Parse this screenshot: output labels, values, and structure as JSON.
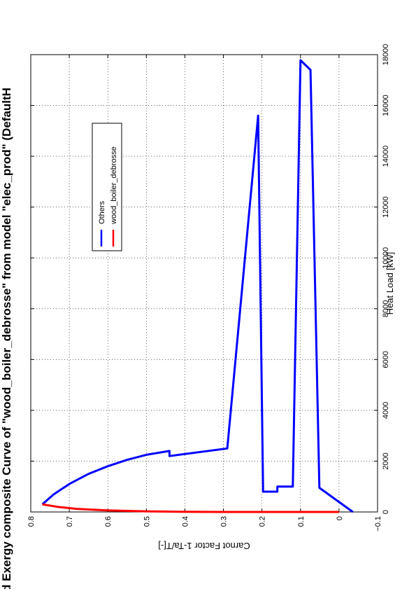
{
  "chart_data": {
    "type": "line",
    "title": "d Exergy composite Curve of \"wood_boiler_debrosse\" from model \"elec_prod\" (DefaultH",
    "xlabel": "Heat Load [kW]",
    "ylabel": "Carnot Factor 1-Ta/T[-]",
    "xlim": [
      0,
      18000
    ],
    "ylim": [
      -0.1,
      0.8
    ],
    "x_ticks": [
      0,
      2000,
      4000,
      6000,
      8000,
      10000,
      12000,
      14000,
      16000,
      18000
    ],
    "y_ticks": [
      -0.1,
      0,
      0.1,
      0.2,
      0.3,
      0.4,
      0.5,
      0.6,
      0.7,
      0.8
    ],
    "x_tick_labels": [
      "0",
      "2000",
      "4000",
      "6000",
      "8000",
      "10000",
      "12000",
      "14000",
      "16000",
      "18000"
    ],
    "y_tick_labels": [
      "−0.1",
      "0",
      "0.1",
      "0.2",
      "0.3",
      "0.4",
      "0.5",
      "0.6",
      "0.7",
      "0.8"
    ],
    "grid": true,
    "legend_position": "top-right",
    "orientation": "rotated 90 degrees counter-clockwise",
    "series": [
      {
        "name": "Others",
        "color": "#0000ff",
        "points": [
          [
            0,
            -0.036
          ],
          [
            950,
            0.051
          ],
          [
            17400,
            0.074
          ],
          [
            17780,
            0.1
          ],
          [
            1000,
            0.12
          ],
          [
            1000,
            0.16
          ],
          [
            800,
            0.16
          ],
          [
            800,
            0.197
          ],
          [
            15600,
            0.21
          ],
          [
            2500,
            0.29
          ],
          [
            2200,
            0.44
          ],
          [
            2400,
            0.44
          ],
          [
            2250,
            0.5
          ],
          [
            2050,
            0.55
          ],
          [
            1800,
            0.6
          ],
          [
            1500,
            0.65
          ],
          [
            1100,
            0.7
          ],
          [
            700,
            0.74
          ],
          [
            300,
            0.77
          ]
        ]
      },
      {
        "name": "wood_boiler_debrosse",
        "color": "#ff0000",
        "points": [
          [
            300,
            0.77
          ],
          [
            200,
            0.73
          ],
          [
            120,
            0.68
          ],
          [
            60,
            0.6
          ],
          [
            25,
            0.5
          ],
          [
            8,
            0.4
          ],
          [
            0,
            0.3
          ],
          [
            0,
            0
          ]
        ]
      }
    ]
  }
}
